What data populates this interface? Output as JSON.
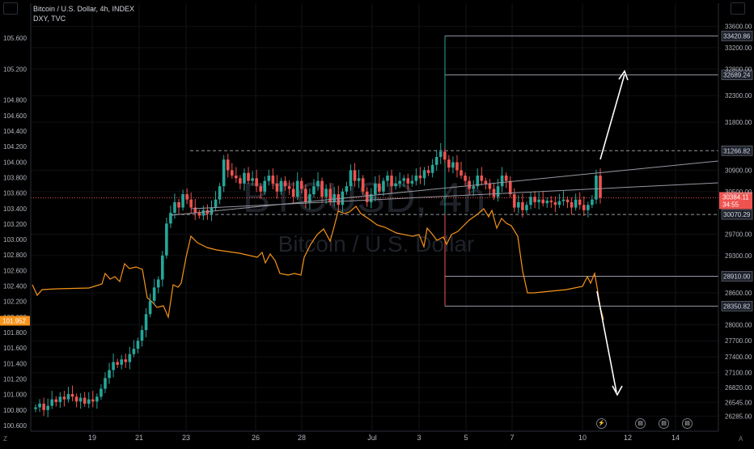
{
  "header": {
    "title": "Bitcoin / U.S. Dollar, 4h, INDEX",
    "subtitle": "DXY, TVC"
  },
  "watermark": {
    "main": "BTCUSD, 4h",
    "sub": "Bitcoin / U.S. Dollar"
  },
  "icons": {
    "bolt": "lightning-icon",
    "flags": [
      "us-flag-icon",
      "us-flag-icon",
      "us-flag-icon"
    ],
    "scale_left": "Z",
    "scale_right": "A",
    "bottom_left": "⚙",
    "bottom_right": "⚙"
  },
  "colors": {
    "up": "#26a69a",
    "down": "#ef5350",
    "dxy": "#f7931a",
    "arrows": "#ffffff",
    "level": "#9598a1"
  },
  "chart_data": {
    "type": "candlestick",
    "x_axis": {
      "tick_labels": [
        "19",
        "21",
        "23",
        "26",
        "28",
        "Jul",
        "3",
        "5",
        "7",
        "10",
        "12",
        "14"
      ]
    },
    "left_axis": {
      "series": "DXY",
      "tick_labels": [
        "105.600",
        "105.200",
        "104.800",
        "104.600",
        "104.400",
        "104.200",
        "104.000",
        "103.800",
        "103.600",
        "103.400",
        "103.200",
        "103.000",
        "102.800",
        "102.600",
        "102.400",
        "102.200",
        "102.000",
        "101.800",
        "101.600",
        "101.400",
        "101.200",
        "101.000",
        "100.800",
        "100.600"
      ],
      "current_label": "101.952"
    },
    "right_axis": {
      "series": "BTCUSD",
      "tick_labels": [
        "33600.00",
        "33200.00",
        "32800.00",
        "32300.00",
        "31800.00",
        "30900.00",
        "30500.00",
        "29700.00",
        "29300.00",
        "28600.00",
        "28000.00",
        "27700.00",
        "27400.00",
        "27100.00",
        "26820.00",
        "26545.00",
        "26285.00"
      ],
      "current_price": "30384.11",
      "countdown": "34:55"
    },
    "levels": [
      {
        "value": 33420.86,
        "label": "33420.86"
      },
      {
        "value": 32689.24,
        "label": "32689.24"
      },
      {
        "value": 31266.82,
        "label": "31266.82"
      },
      {
        "value": 30070.29,
        "label": "30070.29"
      },
      {
        "value": 28910.0,
        "label": "28910.00"
      },
      {
        "value": 28350.82,
        "label": "28350.82"
      }
    ]
  }
}
